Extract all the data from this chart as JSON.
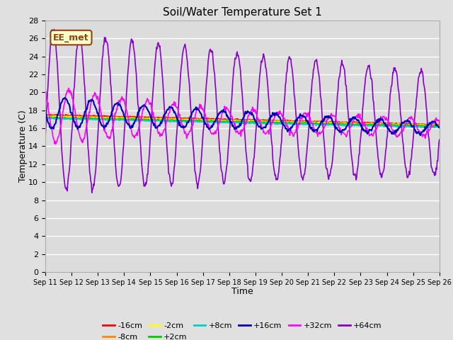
{
  "title": "Soil/Water Temperature Set 1",
  "xlabel": "Time",
  "ylabel": "Temperature (C)",
  "ylim": [
    0,
    28
  ],
  "yticks": [
    0,
    2,
    4,
    6,
    8,
    10,
    12,
    14,
    16,
    18,
    20,
    22,
    24,
    26,
    28
  ],
  "x_labels": [
    "Sep 11",
    "Sep 12",
    "Sep 13",
    "Sep 14",
    "Sep 15",
    "Sep 16",
    "Sep 17",
    "Sep 18",
    "Sep 19",
    "Sep 20",
    "Sep 21",
    "Sep 22",
    "Sep 23",
    "Sep 24",
    "Sep 25",
    "Sep 26"
  ],
  "series": {
    "-16cm": {
      "color": "#FF0000",
      "linewidth": 1.2
    },
    "-8cm": {
      "color": "#FF8800",
      "linewidth": 1.2
    },
    "-2cm": {
      "color": "#FFFF00",
      "linewidth": 1.2
    },
    "+2cm": {
      "color": "#00CC00",
      "linewidth": 1.2
    },
    "+8cm": {
      "color": "#00CCCC",
      "linewidth": 1.2
    },
    "+16cm": {
      "color": "#0000BB",
      "linewidth": 1.5
    },
    "+32cm": {
      "color": "#FF00FF",
      "linewidth": 1.2
    },
    "+64cm": {
      "color": "#8800CC",
      "linewidth": 1.2
    }
  },
  "legend_order": [
    "-16cm",
    "-8cm",
    "-2cm",
    "+2cm",
    "+8cm",
    "+16cm",
    "+32cm",
    "+64cm"
  ],
  "annotation": {
    "text": "EE_met",
    "bg_color": "#FFFFCC",
    "border_color": "#8B4513",
    "fontsize": 9
  },
  "fig_bg_color": "#E0E0E0",
  "plot_bg_color": "#DCDCDC"
}
